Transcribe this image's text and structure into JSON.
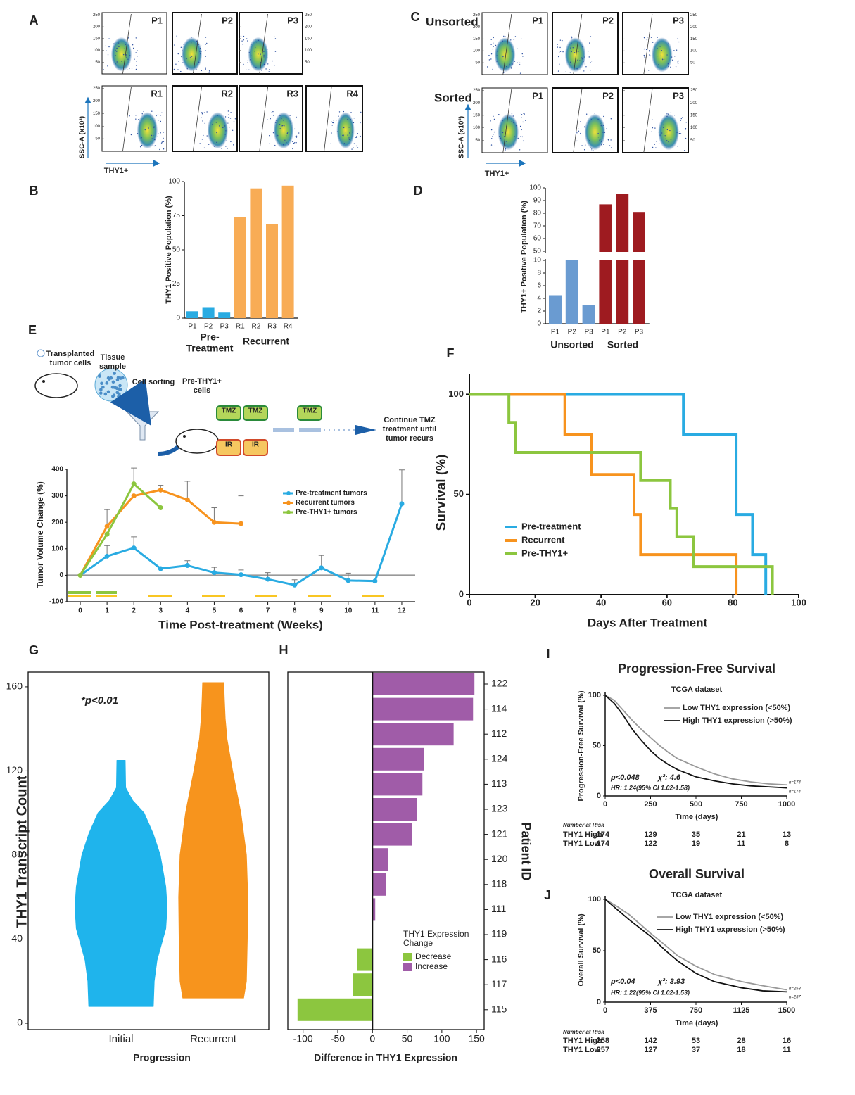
{
  "letters": [
    "A",
    "B",
    "C",
    "D",
    "E",
    "F",
    "G",
    "H",
    "I",
    "J"
  ],
  "flow": {
    "A": {
      "rows": [
        [
          "P1",
          "P2",
          "P3"
        ],
        [
          "R1",
          "R2",
          "R3",
          "R4"
        ]
      ],
      "ylabel": "SSC-A (x10³)",
      "xlabel": "THY1+",
      "yticks": [
        50,
        100,
        150,
        200,
        250
      ]
    },
    "C": {
      "row_labels": [
        "Unsorted",
        "Sorted"
      ],
      "rows": [
        [
          "P1",
          "P2",
          "P3"
        ],
        [
          "P1",
          "P2",
          "P3"
        ]
      ],
      "ylabel": "SSC-A (x10³)",
      "xlabel": "THY1+",
      "yticks": [
        50,
        100,
        150,
        200,
        250
      ]
    }
  },
  "diagram": {
    "transplanted": [
      "Transplanted",
      "tumor cells"
    ],
    "tissue": [
      "Tissue",
      "sample"
    ],
    "sorting": "Cell sorting",
    "pre_thy1": [
      "Pre-THY1+",
      "cells"
    ],
    "tmz": [
      "TMZ",
      "TMZ",
      "TMZ"
    ],
    "ir": [
      "IR",
      "IR"
    ],
    "continue": [
      "Continue TMZ",
      "treatment until",
      "tumor recurs"
    ]
  },
  "chart_data": [
    {
      "type": "bar",
      "ylabel": "THY1 Positive Population (%)",
      "categories": [
        "P1",
        "P2",
        "P3",
        "R1",
        "R2",
        "R3",
        "R4"
      ],
      "values": [
        5,
        8,
        4,
        74,
        95,
        69,
        97
      ],
      "colors": [
        "#29abe2",
        "#29abe2",
        "#29abe2",
        "#f8ac55",
        "#f8ac55",
        "#f8ac55",
        "#f8ac55"
      ],
      "ylim": [
        0,
        100
      ],
      "yticks": [
        0,
        25,
        50,
        75,
        100
      ],
      "groups": [
        {
          "lines": [
            "Pre-",
            "Treatment"
          ],
          "color": "#222222"
        },
        {
          "lines": [
            "Recurrent"
          ],
          "color": "#222222"
        }
      ]
    },
    {
      "type": "bar",
      "ylabel": "THY1+ Positive Population (%)",
      "categories": [
        "P1",
        "P2",
        "P3",
        "P1",
        "P2",
        "P3"
      ],
      "values": [
        4.5,
        10.5,
        3,
        87,
        95,
        81
      ],
      "colors": [
        "#6a9bd1",
        "#6a9bd1",
        "#6a9bd1",
        "#9e1b20",
        "#9e1b20",
        "#9e1b20"
      ],
      "ylim": [
        0,
        100
      ],
      "ybreak": [
        10,
        50
      ],
      "yticks": [
        0,
        2,
        4,
        6,
        8,
        10,
        50,
        60,
        70,
        80,
        90,
        100
      ],
      "groups": [
        {
          "lines": [
            "Unsorted"
          ],
          "color": "#6a9bd1"
        },
        {
          "lines": [
            "Sorted"
          ],
          "color": "#9e1b20"
        }
      ]
    },
    {
      "type": "line",
      "ylabel": "Tumor Volume Change (%)",
      "xlabel": "Time Post-treatment (Weeks)",
      "x": [
        0,
        1,
        2,
        3,
        4,
        5,
        6,
        7,
        8,
        9,
        10,
        11,
        12
      ],
      "xlim": [
        -0.5,
        12.5
      ],
      "xticks": [
        0,
        1,
        2,
        3,
        4,
        5,
        6,
        7,
        8,
        9,
        10,
        11,
        12
      ],
      "ylim": [
        -100,
        400
      ],
      "yticks": [
        -100,
        0,
        100,
        200,
        300,
        400
      ],
      "series": [
        {
          "name": "Pre-treatment tumors",
          "color": "#29abe2",
          "values": [
            0,
            72,
            103,
            25,
            37,
            10,
            2,
            -15,
            -37,
            28,
            -20,
            -22,
            270
          ],
          "errors": [
            null,
            40,
            42,
            null,
            18,
            20,
            18,
            25,
            20,
            47,
            28,
            null,
            128
          ]
        },
        {
          "name": "Recurrent tumors",
          "color": "#f7931e",
          "values": [
            0,
            185,
            300,
            322,
            285,
            200,
            195,
            null,
            null,
            null,
            null,
            null,
            null
          ],
          "errors": [
            null,
            63,
            null,
            18,
            70,
            55,
            105,
            null,
            null,
            null,
            null,
            null,
            null
          ]
        },
        {
          "name": "Pre-THY1+ tumors",
          "color": "#8cc63f",
          "values": [
            0,
            155,
            345,
            255,
            null,
            null,
            null,
            null,
            null,
            null,
            null,
            null,
            null
          ],
          "errors": [
            null,
            null,
            60,
            null,
            null,
            null,
            null,
            null,
            null,
            null,
            null,
            null,
            null
          ]
        }
      ]
    },
    {
      "type": "step",
      "ylabel": "Survival (%)",
      "xlabel": "Days After Treatment",
      "xlim": [
        0,
        100
      ],
      "xticks": [
        0,
        20,
        40,
        60,
        80,
        100
      ],
      "ylim": [
        0,
        110
      ],
      "yticks": [
        0,
        50,
        100
      ],
      "series": [
        {
          "name": "Pre-treatment",
          "color": "#29abe2",
          "x": [
            0,
            65,
            81,
            86,
            90
          ],
          "values": [
            100,
            80,
            40,
            20,
            0
          ]
        },
        {
          "name": "Recurrent",
          "color": "#f7931e",
          "x": [
            0,
            29,
            37,
            50,
            52,
            81
          ],
          "values": [
            100,
            80,
            60,
            40,
            20,
            0
          ]
        },
        {
          "name": "Pre-THY1+",
          "color": "#8cc63f",
          "x": [
            0,
            12,
            14,
            52,
            61,
            63,
            68,
            92
          ],
          "values": [
            100,
            86,
            71,
            57,
            43,
            29,
            14,
            0
          ]
        }
      ]
    },
    {
      "type": "violin",
      "ylabel": "THY1 Transcript Count",
      "xlabel": "Progression",
      "annotation": "*p<0.01",
      "ylim": [
        -3,
        167
      ],
      "yticks": [
        0,
        40,
        80,
        120,
        160
      ],
      "categories": [
        "Initial",
        "Recurrent"
      ],
      "series": [
        {
          "name": "Initial",
          "color": "#1fb4ec",
          "values": [
            8,
            20,
            30,
            45,
            55,
            65,
            80,
            90,
            100,
            106,
            112,
            125
          ],
          "density": [
            0.7,
            0.72,
            0.78,
            0.97,
            1.0,
            0.97,
            0.85,
            0.7,
            0.5,
            0.25,
            0.1,
            0.09
          ]
        },
        {
          "name": "Recurrent",
          "color": "#f7941d",
          "values": [
            12,
            20,
            40,
            60,
            80,
            100,
            120,
            135,
            145,
            155,
            162
          ],
          "density": [
            0.66,
            0.72,
            0.74,
            0.75,
            0.72,
            0.6,
            0.42,
            0.3,
            0.26,
            0.24,
            0.23
          ]
        }
      ]
    },
    {
      "type": "barh",
      "ylabel": "Patient ID",
      "xlabel": "Difference in THY1 Expression",
      "categories": [
        "122",
        "114",
        "112",
        "124",
        "113",
        "123",
        "121",
        "120",
        "118",
        "111",
        "119",
        "116",
        "117",
        "115"
      ],
      "values": [
        147,
        145,
        117,
        74,
        72,
        64,
        57,
        23,
        19,
        4,
        0,
        -22,
        -28,
        -108
      ],
      "xlim": [
        -122,
        161
      ],
      "xticks": [
        -100,
        -50,
        0,
        50,
        100,
        150
      ],
      "legend": {
        "title": [
          "THY1 Expression",
          "Change"
        ],
        "items": [
          {
            "name": "Decrease",
            "color": "#8cc63f"
          },
          {
            "name": "Increase",
            "color": "#a05ca8"
          }
        ]
      }
    },
    {
      "type": "survival",
      "title": "Progression-Free Survival",
      "subtitle": "TCGA dataset",
      "ylabel": "Progression-Free Survival (%)",
      "xlabel": "Time (days)",
      "xlim": [
        0,
        1000
      ],
      "xticks": [
        0,
        250,
        500,
        750,
        1000
      ],
      "ylim": [
        0,
        100
      ],
      "yticks": [
        0,
        50,
        100
      ],
      "series": [
        {
          "name": "Low THY1 expression (<50%)",
          "color": "#999999",
          "x": [
            0,
            50,
            100,
            150,
            200,
            250,
            300,
            350,
            400,
            500,
            600,
            700,
            800,
            900,
            1000
          ],
          "values": [
            100,
            95,
            85,
            75,
            66,
            58,
            50,
            43,
            37,
            29,
            22,
            17,
            14,
            12,
            11
          ]
        },
        {
          "name": "High THY1 expression (>50%)",
          "color": "#111111",
          "x": [
            0,
            50,
            100,
            150,
            200,
            250,
            300,
            350,
            400,
            500,
            600,
            700,
            800,
            900,
            1000
          ],
          "values": [
            100,
            92,
            80,
            66,
            55,
            45,
            37,
            31,
            26,
            19,
            15,
            12,
            10,
            9,
            8
          ]
        }
      ],
      "annotations": [
        "p<0.048",
        "χ²: 4.6",
        "HR: 1.24(95% CI 1.02-1.58)"
      ],
      "n_labels": [
        "n=174",
        "n=174"
      ],
      "risk_title": "Number at Risk",
      "risk": [
        {
          "name": "THY1 High",
          "color": "#111111",
          "values": [
            174,
            129,
            35,
            21,
            13
          ]
        },
        {
          "name": "THY1 Low",
          "color": "#999999",
          "values": [
            174,
            122,
            19,
            11,
            8
          ]
        }
      ]
    },
    {
      "type": "survival",
      "title": "Overall Survival",
      "subtitle": "TCGA dataset",
      "ylabel": "Overall Survival (%)",
      "xlabel": "Time (days)",
      "xlim": [
        0,
        1500
      ],
      "xticks": [
        0,
        375,
        750,
        1125,
        1500
      ],
      "ylim": [
        0,
        100
      ],
      "yticks": [
        0,
        50,
        100
      ],
      "series": [
        {
          "name": "Low THY1 expression (<50%)",
          "color": "#999999",
          "x": [
            0,
            100,
            200,
            375,
            500,
            600,
            750,
            900,
            1125,
            1300,
            1500
          ],
          "values": [
            100,
            93,
            85,
            67,
            55,
            45,
            35,
            27,
            20,
            16,
            12
          ]
        },
        {
          "name": "High THY1 expression (>50%)",
          "color": "#111111",
          "x": [
            0,
            100,
            200,
            375,
            500,
            600,
            750,
            900,
            1125,
            1300,
            1500
          ],
          "values": [
            100,
            90,
            80,
            64,
            50,
            40,
            28,
            20,
            14,
            11,
            10
          ]
        }
      ],
      "annotations": [
        "p<0.04",
        "χ²: 3.93",
        "HR: 1.22(95% CI 1.02-1.53)"
      ],
      "n_labels": [
        "n=258",
        "n=257"
      ],
      "risk_title": "Number at Risk",
      "risk": [
        {
          "name": "THY1 High",
          "color": "#111111",
          "values": [
            258,
            142,
            53,
            28,
            16
          ]
        },
        {
          "name": "THY1 Low",
          "color": "#999999",
          "values": [
            257,
            127,
            37,
            18,
            11
          ]
        }
      ]
    }
  ]
}
